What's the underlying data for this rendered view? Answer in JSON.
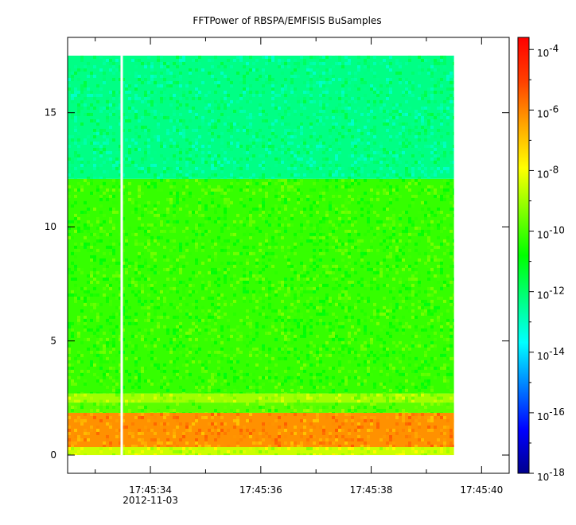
{
  "chart_data": {
    "type": "heatmap",
    "title": "FFTPower of RBSPA/EMFISIS  BuSamples",
    "xlabel": "",
    "ylabel": "",
    "x_range": [
      "17:45:32.5",
      "17:45:40.5"
    ],
    "x_ticks": [
      {
        "value": "17:45:34",
        "label": "17:45:34",
        "sublabel": "2012-11-03"
      },
      {
        "value": "17:45:36",
        "label": "17:45:36",
        "sublabel": ""
      },
      {
        "value": "17:45:38",
        "label": "17:45:38",
        "sublabel": ""
      },
      {
        "value": "17:45:40",
        "label": "17:45:40",
        "sublabel": ""
      }
    ],
    "x_minor_ticks": [
      "17:45:33",
      "17:45:35",
      "17:45:37",
      "17:45:39"
    ],
    "ylim": [
      -0.8,
      18.3
    ],
    "y_ticks": [
      {
        "value": 0,
        "label": "0"
      },
      {
        "value": 5,
        "label": "5"
      },
      {
        "value": 10,
        "label": "10"
      },
      {
        "value": 15,
        "label": "15"
      }
    ],
    "data_x_range": [
      "17:45:32.5",
      "17:45:39.5"
    ],
    "data_y_range": [
      0,
      17.5
    ],
    "gap_time": "17:45:33.48",
    "bands": [
      {
        "y_range": [
          0,
          0.35
        ],
        "power_log10": -8.5
      },
      {
        "y_range": [
          0.35,
          1.85
        ],
        "power_log10": -6.2
      },
      {
        "y_range": [
          1.85,
          2.3
        ],
        "power_log10": -9.8
      },
      {
        "y_range": [
          2.3,
          2.7
        ],
        "power_log10": -9.0
      },
      {
        "y_range": [
          2.7,
          12.1
        ],
        "power_log10": -10.2
      },
      {
        "y_range": [
          12.1,
          17.5
        ],
        "power_log10": -12.3
      }
    ],
    "colorbar": {
      "scale": "log",
      "range": [
        -18,
        -3.6
      ],
      "ticks": [
        {
          "value": -4,
          "base": "10",
          "exp": "-4"
        },
        {
          "value": -6,
          "base": "10",
          "exp": "-6"
        },
        {
          "value": -8,
          "base": "10",
          "exp": "-8"
        },
        {
          "value": -10,
          "base": "10",
          "exp": "-10"
        },
        {
          "value": -12,
          "base": "10",
          "exp": "-12"
        },
        {
          "value": -14,
          "base": "10",
          "exp": "-14"
        },
        {
          "value": -16,
          "base": "10",
          "exp": "-16"
        },
        {
          "value": -18,
          "base": "10",
          "exp": "-18"
        }
      ],
      "colormap": "rainbow",
      "colors": [
        "#00008c",
        "#0000ff",
        "#0080ff",
        "#00ffff",
        "#00ff80",
        "#00ff00",
        "#80ff00",
        "#ffff00",
        "#ffa500",
        "#ff4000",
        "#ff0000"
      ]
    },
    "grid": false,
    "legend": "none"
  }
}
